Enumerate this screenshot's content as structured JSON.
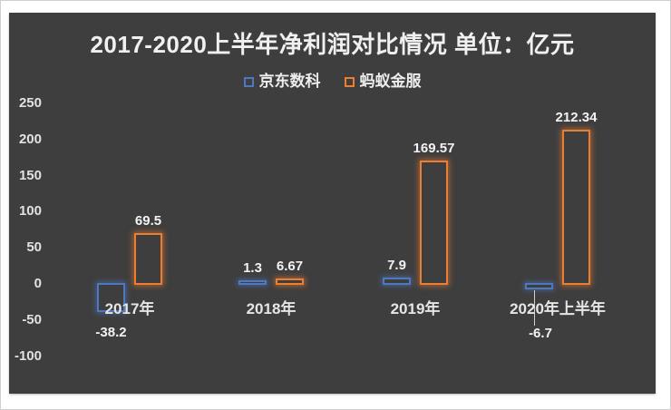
{
  "chart_data": {
    "type": "bar",
    "title": "2017-2020上半年净利润对比情况 单位：亿元",
    "unit": "亿元",
    "categories": [
      "2017年",
      "2018年",
      "2019年",
      "2020年上半年"
    ],
    "series": [
      {
        "name": "京东数科",
        "color": "#4E79C0",
        "glow": "rgba(78,121,192,0.55)",
        "values": [
          -38.2,
          1.3,
          7.9,
          -6.7
        ],
        "labels": [
          "-38.2",
          "1.3",
          "7.9",
          "-6.7"
        ]
      },
      {
        "name": "蚂蚁金服",
        "color": "#ED7D31",
        "glow": "rgba(237,125,49,0.55)",
        "values": [
          69.5,
          6.67,
          169.57,
          212.34
        ],
        "labels": [
          "69.5",
          "6.67",
          "169.57",
          "212.34"
        ]
      }
    ],
    "y_ticks": [
      250,
      200,
      150,
      100,
      50,
      0,
      -50,
      -100
    ],
    "ylim": [
      -100,
      250
    ],
    "grid": false,
    "legend_position": "top-center",
    "plot_background": "#3E3E3E",
    "text_color": "#F0F0F0",
    "bar_style": "hollow-outline-glow"
  }
}
